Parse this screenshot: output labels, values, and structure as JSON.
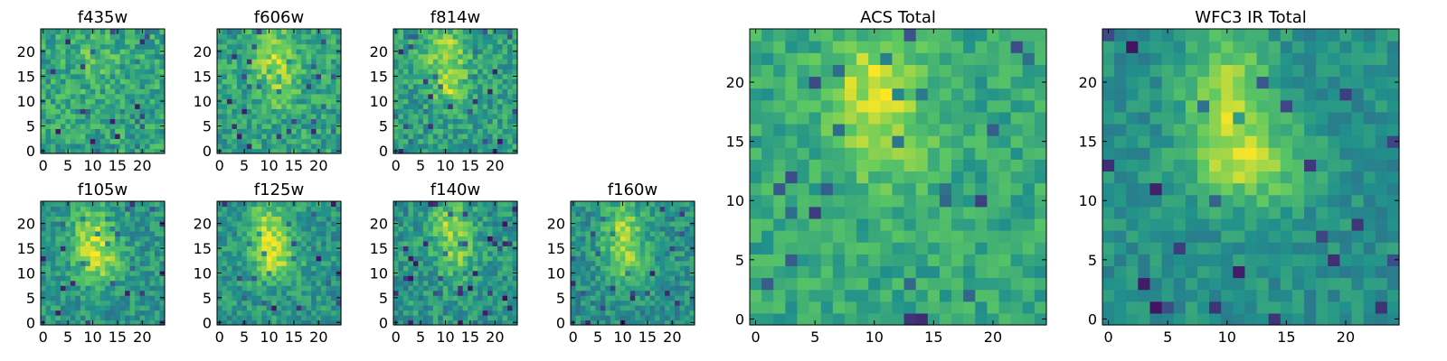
{
  "colormap": {
    "name": "viridis",
    "stops": [
      "#440154",
      "#3b528b",
      "#21918c",
      "#5ec962",
      "#fde725"
    ]
  },
  "chart_data": [
    {
      "type": "heatmap",
      "title": "f435w",
      "grid": [
        25,
        25
      ],
      "xticks": [
        "0",
        "5",
        "10",
        "15",
        "20"
      ],
      "yticks": [
        "0",
        "5",
        "10",
        "15",
        "20"
      ],
      "blobs": [
        {
          "x": 10,
          "y": 19,
          "sx": 4,
          "sy": 4,
          "a": 0.1
        }
      ],
      "base": 0.58,
      "noise": 0.17,
      "seed": 11
    },
    {
      "type": "heatmap",
      "title": "f606w",
      "grid": [
        25,
        25
      ],
      "xticks": [
        "0",
        "5",
        "10",
        "15",
        "20"
      ],
      "yticks": [
        "0",
        "5",
        "10",
        "15",
        "20"
      ],
      "blobs": [
        {
          "x": 11,
          "y": 19,
          "sx": 3,
          "sy": 4,
          "a": 0.28
        },
        {
          "x": 12,
          "y": 12,
          "sx": 3,
          "sy": 3,
          "a": 0.12
        }
      ],
      "base": 0.58,
      "noise": 0.16,
      "seed": 23
    },
    {
      "type": "heatmap",
      "title": "f814w",
      "grid": [
        25,
        25
      ],
      "xticks": [
        "0",
        "5",
        "10",
        "15",
        "20"
      ],
      "yticks": [
        "0",
        "5",
        "10",
        "15",
        "20"
      ],
      "blobs": [
        {
          "x": 10,
          "y": 20,
          "sx": 3,
          "sy": 3,
          "a": 0.32
        },
        {
          "x": 11,
          "y": 13,
          "sx": 2.5,
          "sy": 2.5,
          "a": 0.28
        }
      ],
      "base": 0.56,
      "noise": 0.16,
      "seed": 37
    },
    {
      "type": "heatmap",
      "title": "f105w",
      "grid": [
        25,
        25
      ],
      "xticks": [
        "0",
        "5",
        "10",
        "15",
        "20"
      ],
      "yticks": [
        "0",
        "5",
        "10",
        "15",
        "20"
      ],
      "blobs": [
        {
          "x": 10,
          "y": 17,
          "sx": 3,
          "sy": 5,
          "a": 0.33
        },
        {
          "x": 12,
          "y": 12,
          "sx": 3,
          "sy": 3,
          "a": 0.18
        }
      ],
      "base": 0.52,
      "noise": 0.14,
      "seed": 41
    },
    {
      "type": "heatmap",
      "title": "f125w",
      "grid": [
        25,
        25
      ],
      "xticks": [
        "0",
        "5",
        "10",
        "15",
        "20"
      ],
      "yticks": [
        "0",
        "5",
        "10",
        "15",
        "20"
      ],
      "blobs": [
        {
          "x": 10,
          "y": 18,
          "sx": 3,
          "sy": 5,
          "a": 0.35
        },
        {
          "x": 12,
          "y": 12,
          "sx": 3,
          "sy": 3,
          "a": 0.2
        }
      ],
      "base": 0.52,
      "noise": 0.14,
      "seed": 53
    },
    {
      "type": "heatmap",
      "title": "f140w",
      "grid": [
        25,
        25
      ],
      "xticks": [
        "0",
        "5",
        "10",
        "15",
        "20"
      ],
      "yticks": [
        "0",
        "5",
        "10",
        "15",
        "20"
      ],
      "blobs": [
        {
          "x": 11,
          "y": 20,
          "sx": 3,
          "sy": 3,
          "a": 0.3
        },
        {
          "x": 12,
          "y": 13,
          "sx": 3,
          "sy": 3,
          "a": 0.22
        }
      ],
      "base": 0.52,
      "noise": 0.15,
      "seed": 67
    },
    {
      "type": "heatmap",
      "title": "f160w",
      "grid": [
        25,
        25
      ],
      "xticks": [
        "0",
        "5",
        "10",
        "15",
        "20"
      ],
      "yticks": [
        "0",
        "5",
        "10",
        "15",
        "20"
      ],
      "blobs": [
        {
          "x": 10,
          "y": 19,
          "sx": 3,
          "sy": 4,
          "a": 0.32
        },
        {
          "x": 11,
          "y": 12,
          "sx": 3,
          "sy": 3,
          "a": 0.25
        }
      ],
      "base": 0.5,
      "noise": 0.14,
      "seed": 79
    },
    {
      "type": "heatmap",
      "title": "ACS Total",
      "grid": [
        25,
        25
      ],
      "xticks": [
        "0",
        "5",
        "10",
        "15",
        "20"
      ],
      "yticks": [
        "0",
        "5",
        "10",
        "15",
        "20"
      ],
      "blobs": [
        {
          "x": 10,
          "y": 20,
          "sx": 3,
          "sy": 3,
          "a": 0.28
        },
        {
          "x": 11,
          "y": 14,
          "sx": 3,
          "sy": 3,
          "a": 0.15
        }
      ],
      "base": 0.6,
      "noise": 0.12,
      "seed": 97
    },
    {
      "type": "heatmap",
      "title": "WFC3 IR Total",
      "grid": [
        25,
        25
      ],
      "xticks": [
        "0",
        "5",
        "10",
        "15",
        "20"
      ],
      "yticks": [
        "0",
        "5",
        "10",
        "15",
        "20"
      ],
      "blobs": [
        {
          "x": 10,
          "y": 19,
          "sx": 2.5,
          "sy": 4,
          "a": 0.35
        },
        {
          "x": 12,
          "y": 13,
          "sx": 3.5,
          "sy": 2.5,
          "a": 0.3
        }
      ],
      "base": 0.5,
      "noise": 0.1,
      "seed": 131
    }
  ]
}
